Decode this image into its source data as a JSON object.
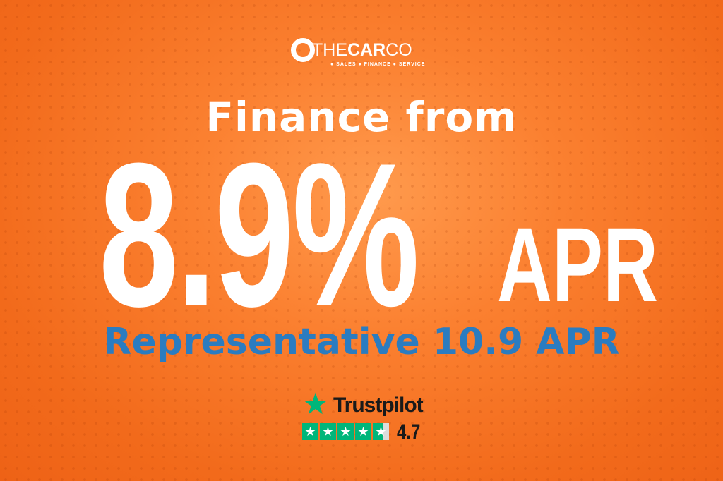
{
  "logo": {
    "brand_light_1": "THE",
    "brand_bold": "CAR",
    "brand_light_2": "CO",
    "tagline": "● SALES ● FINANCE ● SERVICE"
  },
  "headline": "Finance from",
  "rate": "8.9%",
  "rate_suffix": "APR",
  "representative": "Representative 10.9 APR",
  "trustpilot": {
    "label": "Trustpilot",
    "score": "4.7",
    "rating": 4.7,
    "max_rating": 5,
    "star_icon": "star-icon"
  },
  "colors": {
    "background": "#f26a1b",
    "accent_blue": "#2b7cc0",
    "trustpilot_green": "#00b67a"
  }
}
